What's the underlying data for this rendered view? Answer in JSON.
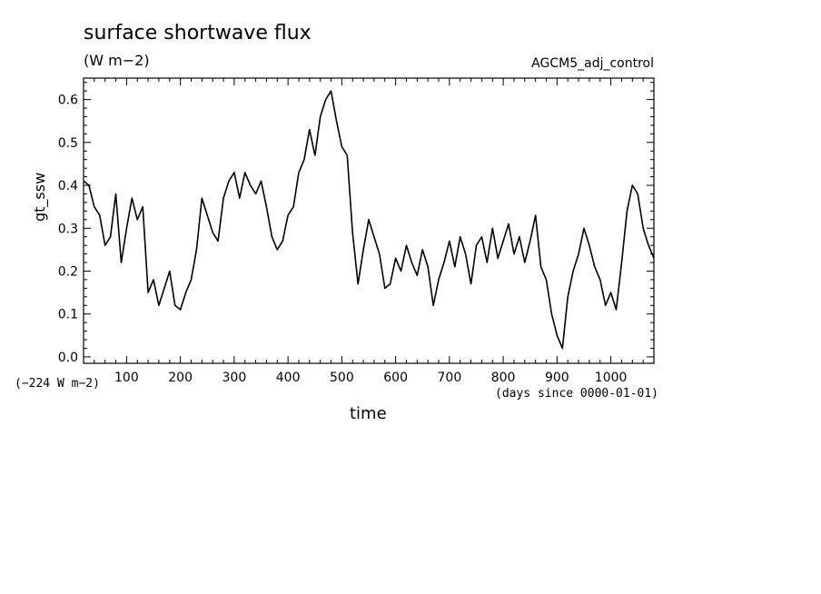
{
  "chart_data": {
    "type": "line",
    "title": "surface shortwave flux",
    "units": "(W m−2)",
    "run_name": "AGCM5_adj_control",
    "offset_note": "(−224 W m−2)",
    "xlabel": "time",
    "x_origin_note": "(days since 0000-01-01)",
    "ylabel": "gt_ssw",
    "xlim": [
      20,
      1080
    ],
    "ylim": [
      -0.015,
      0.65
    ],
    "xticks": [
      100,
      200,
      300,
      400,
      500,
      600,
      700,
      800,
      900,
      1000
    ],
    "yticks": [
      0.0,
      0.1,
      0.2,
      0.3,
      0.4,
      0.5,
      0.6
    ],
    "ytick_labels": [
      "0.0",
      "0.1",
      "0.2",
      "0.3",
      "0.4",
      "0.5",
      "0.6"
    ],
    "grid": false,
    "line_color": "#000000",
    "series": [
      {
        "x": [
          20,
          30,
          40,
          50,
          60,
          70,
          80,
          90,
          100,
          110,
          120,
          130,
          140,
          150,
          160,
          170,
          180,
          190,
          200,
          210,
          220,
          230,
          240,
          250,
          260,
          270,
          280,
          290,
          300,
          310,
          320,
          330,
          340,
          350,
          360,
          370,
          380,
          390,
          400,
          410,
          420,
          430,
          440,
          450,
          460,
          470,
          480,
          490,
          500,
          510,
          520,
          530,
          540,
          550,
          560,
          570,
          580,
          590,
          600,
          610,
          620,
          630,
          640,
          650,
          660,
          670,
          680,
          690,
          700,
          710,
          720,
          730,
          740,
          750,
          760,
          770,
          780,
          790,
          800,
          810,
          820,
          830,
          840,
          850,
          860,
          870,
          880,
          890,
          900,
          910,
          920,
          930,
          940,
          950,
          960,
          970,
          980,
          990,
          1000,
          1010,
          1020,
          1030,
          1040,
          1050,
          1060,
          1070,
          1080
        ],
        "y": [
          0.41,
          0.4,
          0.35,
          0.33,
          0.26,
          0.28,
          0.38,
          0.22,
          0.3,
          0.37,
          0.32,
          0.35,
          0.15,
          0.18,
          0.12,
          0.16,
          0.2,
          0.12,
          0.11,
          0.15,
          0.18,
          0.25,
          0.37,
          0.33,
          0.29,
          0.27,
          0.37,
          0.41,
          0.43,
          0.37,
          0.43,
          0.4,
          0.38,
          0.41,
          0.35,
          0.28,
          0.25,
          0.27,
          0.33,
          0.35,
          0.43,
          0.46,
          0.53,
          0.47,
          0.56,
          0.6,
          0.62,
          0.55,
          0.49,
          0.47,
          0.29,
          0.17,
          0.25,
          0.32,
          0.28,
          0.24,
          0.16,
          0.17,
          0.23,
          0.2,
          0.26,
          0.22,
          0.19,
          0.25,
          0.21,
          0.12,
          0.18,
          0.22,
          0.27,
          0.21,
          0.28,
          0.24,
          0.17,
          0.26,
          0.28,
          0.22,
          0.3,
          0.23,
          0.27,
          0.31,
          0.24,
          0.28,
          0.22,
          0.27,
          0.33,
          0.21,
          0.18,
          0.1,
          0.05,
          0.02,
          0.14,
          0.2,
          0.24,
          0.3,
          0.26,
          0.21,
          0.18,
          0.12,
          0.15,
          0.11,
          0.22,
          0.34,
          0.4,
          0.38,
          0.3,
          0.26,
          0.23
        ]
      }
    ]
  }
}
